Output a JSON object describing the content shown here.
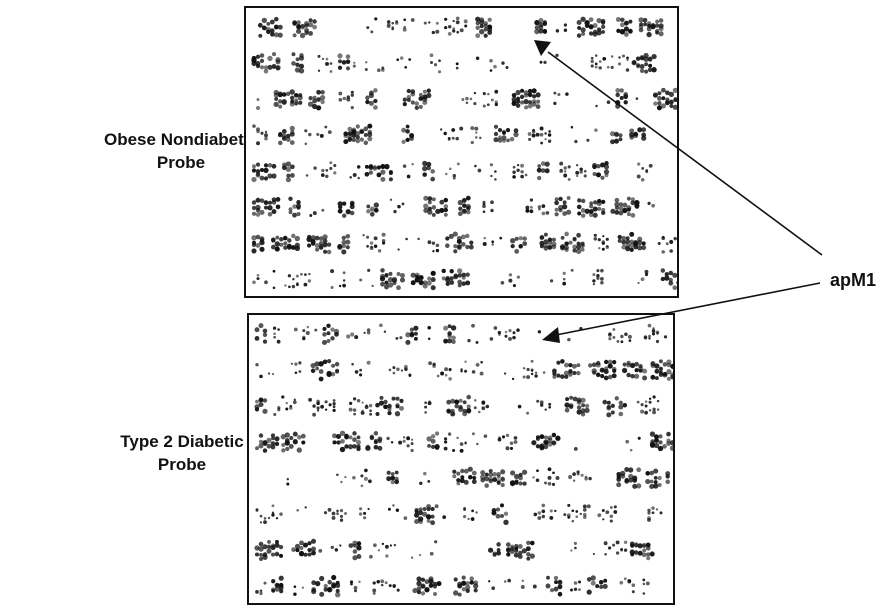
{
  "labels": {
    "top_probe": [
      "Obese Nondiabetic",
      "Probe"
    ],
    "bottom_probe": [
      "Type 2 Diabetic",
      "Probe"
    ],
    "gene": "apM1"
  },
  "colors": {
    "spot": "#111111",
    "frame": "#111111",
    "background": "#ffffff"
  }
}
